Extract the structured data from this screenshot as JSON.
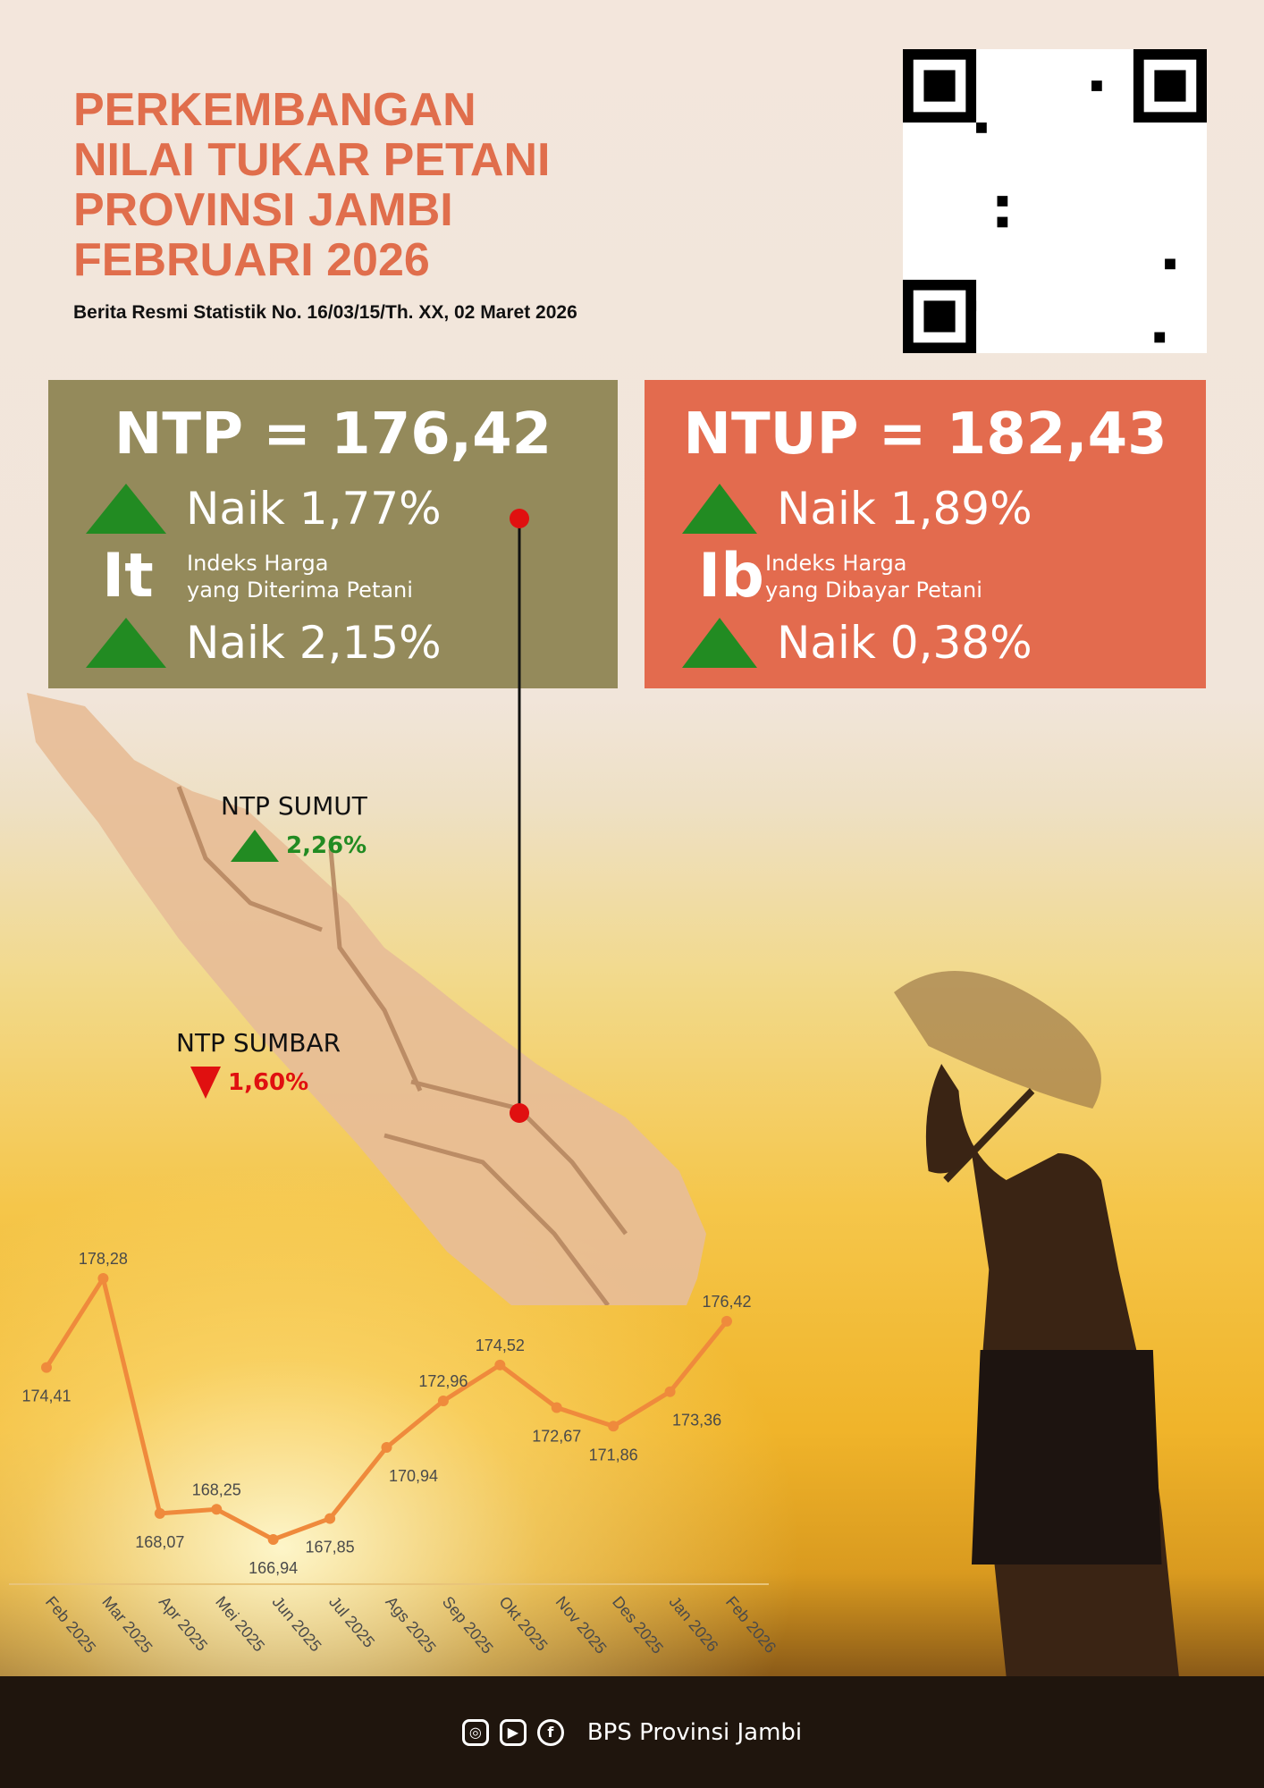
{
  "header": {
    "title_lines": [
      "PERKEMBANGAN",
      "NILAI TUKAR PETANI",
      "PROVINSI JAMBI",
      "FEBRUARI 2026"
    ],
    "subtitle": "Berita Resmi Statistik No. 16/03/15/Th. XX, 02 Maret 2026"
  },
  "ntp_box": {
    "headline": "NTP = 176,42",
    "change1": "Naik 1,77%",
    "code": "It",
    "desc1": "Indeks Harga",
    "desc2": "yang Diterima Petani",
    "change2": "Naik 2,15%",
    "color": "#948a5b"
  },
  "ntup_box": {
    "headline": "NTUP = 182,43",
    "change1": "Naik 1,89%",
    "code": "Ib",
    "desc1": "Indeks Harga",
    "desc2": "yang Dibayar Petani",
    "change2": "Naik 0,38%",
    "color": "#e36b4e"
  },
  "map": {
    "sumut": {
      "label": "NTP SUMUT",
      "value": "2,26%",
      "direction": "up",
      "color": "#228b22"
    },
    "sumbar": {
      "label": "NTP SUMBAR",
      "value": "1,60%",
      "direction": "down",
      "color": "#e01010"
    }
  },
  "chart_data": {
    "type": "line",
    "categories": [
      "Feb 2025",
      "Mar 2025",
      "Apr 2025",
      "Mei 2025",
      "Jun 2025",
      "Jul 2025",
      "Ags 2025",
      "Sep 2025",
      "Okt 2025",
      "Nov 2025",
      "Des 2025",
      "Jan 2026",
      "Feb 2026"
    ],
    "values": [
      174.41,
      178.28,
      168.07,
      168.25,
      166.94,
      167.85,
      170.94,
      172.96,
      174.52,
      172.67,
      171.86,
      173.36,
      176.42
    ],
    "labels": [
      "174,41",
      "178,28",
      "168,07",
      "168,25",
      "166,94",
      "167,85",
      "170,94",
      "172,96",
      "174,52",
      "172,67",
      "171,86",
      "173,36",
      "176,42"
    ],
    "color": "#ef8a3c",
    "grid": false
  },
  "footer": {
    "icons": [
      "instagram-icon",
      "youtube-icon",
      "facebook-icon"
    ],
    "text": "BPS Provinsi Jambi"
  }
}
